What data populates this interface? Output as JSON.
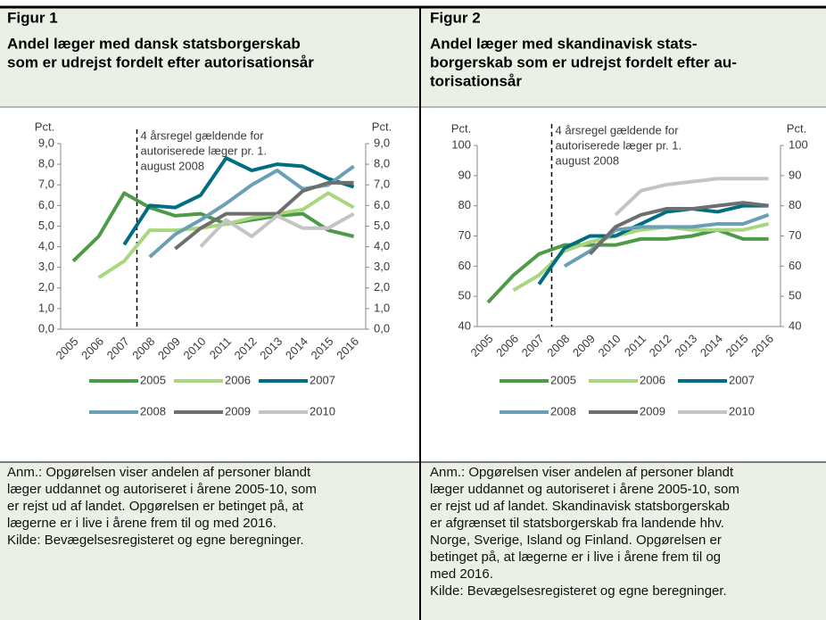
{
  "chart_data": [
    {
      "type": "line",
      "figure_label": "Figur 1",
      "title": [
        "Andel læger med dansk statsborgerskab",
        "som er udrejst fordelt efter autorisationsår"
      ],
      "y_label": "Pct.",
      "y2_label": "Pct.",
      "annotation": [
        "4 årsregel gældende for",
        "autoriserede læger pr. 1.",
        "august 2008"
      ],
      "notes": [
        "Anm.: Opgørelsen viser andelen af personer blandt",
        "læger uddannet og autoriseret i årene 2005-10, som",
        "er rejst ud af landet. Opgørelsen er betinget på, at",
        "lægerne er i live i årene frem til og med 2016.",
        "Kilde: Bevægelsesregisteret og egne beregninger."
      ],
      "categories": [
        "2005",
        "2006",
        "2007",
        "2008",
        "2009",
        "2010",
        "2011",
        "2012",
        "2013",
        "2014",
        "2015",
        "2016"
      ],
      "series": [
        {
          "name": "2005",
          "color": "#4f9a48",
          "values": [
            3.3,
            4.5,
            6.6,
            5.9,
            5.5,
            5.6,
            5.1,
            5.3,
            5.5,
            5.6,
            4.8,
            4.5
          ]
        },
        {
          "name": "2006",
          "color": "#a8d77f",
          "values": [
            null,
            2.5,
            3.3,
            4.8,
            4.8,
            4.9,
            5.1,
            5.4,
            5.6,
            5.8,
            6.6,
            5.9
          ]
        },
        {
          "name": "2007",
          "color": "#006d80",
          "values": [
            null,
            null,
            4.1,
            6.0,
            5.9,
            6.5,
            8.3,
            7.7,
            8.0,
            7.9,
            7.3,
            6.9
          ]
        },
        {
          "name": "2008",
          "color": "#6a9fb5",
          "values": [
            null,
            null,
            null,
            3.5,
            4.6,
            5.3,
            6.1,
            7.0,
            7.7,
            6.8,
            7.0,
            7.9
          ]
        },
        {
          "name": "2009",
          "color": "#6e6e6e",
          "values": [
            null,
            null,
            null,
            null,
            3.9,
            4.9,
            5.6,
            5.6,
            5.6,
            6.7,
            7.1,
            7.1
          ]
        },
        {
          "name": "2010",
          "color": "#c4c4c4",
          "values": [
            null,
            null,
            null,
            null,
            null,
            4.0,
            5.3,
            4.5,
            5.5,
            4.9,
            4.9,
            5.6
          ]
        }
      ],
      "ylim": [
        0,
        9
      ],
      "yticks": [
        {
          "value": 0,
          "label": "0,0"
        },
        {
          "value": 1,
          "label": "1,0"
        },
        {
          "value": 2,
          "label": "2,0"
        },
        {
          "value": 3,
          "label": "3,0"
        },
        {
          "value": 4,
          "label": "4,0"
        },
        {
          "value": 5,
          "label": "5,0"
        },
        {
          "value": 6,
          "label": "6,0"
        },
        {
          "value": 7,
          "label": "7,0"
        },
        {
          "value": 8,
          "label": "8,0"
        },
        {
          "value": 9,
          "label": "9,0"
        }
      ],
      "y2lim": [
        0,
        9
      ],
      "y2ticks": [
        {
          "value": 0,
          "label": "0,0"
        },
        {
          "value": 1,
          "label": "1,0"
        },
        {
          "value": 2,
          "label": "2,0"
        },
        {
          "value": 3,
          "label": "3,0"
        },
        {
          "value": 4,
          "label": "4,0"
        },
        {
          "value": 5,
          "label": "5,0"
        },
        {
          "value": 6,
          "label": "6,0"
        },
        {
          "value": 7,
          "label": "7,0"
        },
        {
          "value": 8,
          "label": "8,0"
        },
        {
          "value": 9,
          "label": "9,0"
        }
      ],
      "grid": false
    },
    {
      "type": "line",
      "figure_label": "Figur 2",
      "title": [
        "Andel læger med skandinavisk stats-",
        "borgerskab som er udrejst fordelt efter au-",
        "torisationsår"
      ],
      "y_label": "Pct.",
      "y2_label": "Pct.",
      "annotation": [
        "4 årsregel gældende for",
        "autoriserede læger pr. 1.",
        "august 2008"
      ],
      "notes": [
        "Anm.: Opgørelsen viser andelen af personer blandt",
        "læger uddannet og autoriseret i årene 2005-10, som",
        "er rejst ud af landet. Skandinavisk statsborgerskab",
        "er afgrænset til statsborgerskab fra landende hhv.",
        "Norge, Sverige, Island og Finland. Opgørelsen er",
        "betinget på, at lægerne er i live i årene frem til og",
        "med 2016.",
        "Kilde: Bevægelsesregisteret og egne beregninger."
      ],
      "categories": [
        "2005",
        "2006",
        "2007",
        "2008",
        "2009",
        "2010",
        "2011",
        "2012",
        "2013",
        "2014",
        "2015",
        "2016"
      ],
      "series": [
        {
          "name": "2005",
          "color": "#4f9a48",
          "values": [
            48,
            57,
            64,
            67,
            67,
            67,
            69,
            69,
            70,
            72,
            69,
            69
          ]
        },
        {
          "name": "2006",
          "color": "#a8d77f",
          "values": [
            null,
            52,
            57,
            65,
            68,
            70,
            72,
            73,
            72,
            72,
            72,
            74
          ]
        },
        {
          "name": "2007",
          "color": "#006d80",
          "values": [
            null,
            null,
            54,
            66,
            70,
            70,
            74,
            78,
            79,
            78,
            80,
            80
          ]
        },
        {
          "name": "2008",
          "color": "#6a9fb5",
          "values": [
            null,
            null,
            null,
            60,
            65,
            72,
            73,
            73,
            73,
            74,
            74,
            77
          ]
        },
        {
          "name": "2009",
          "color": "#6e6e6e",
          "values": [
            null,
            null,
            null,
            null,
            64,
            73,
            77,
            79,
            79,
            80,
            81,
            80
          ]
        },
        {
          "name": "2010",
          "color": "#c4c4c4",
          "values": [
            null,
            null,
            null,
            null,
            null,
            77,
            85,
            87,
            88,
            89,
            89,
            89
          ]
        }
      ],
      "ylim": [
        40,
        100
      ],
      "yticks": [
        40,
        50,
        60,
        70,
        80,
        90,
        100
      ],
      "y2lim": [
        40,
        100
      ],
      "y2ticks": [
        40,
        50,
        60,
        70,
        80,
        90,
        100
      ],
      "grid": false
    }
  ]
}
